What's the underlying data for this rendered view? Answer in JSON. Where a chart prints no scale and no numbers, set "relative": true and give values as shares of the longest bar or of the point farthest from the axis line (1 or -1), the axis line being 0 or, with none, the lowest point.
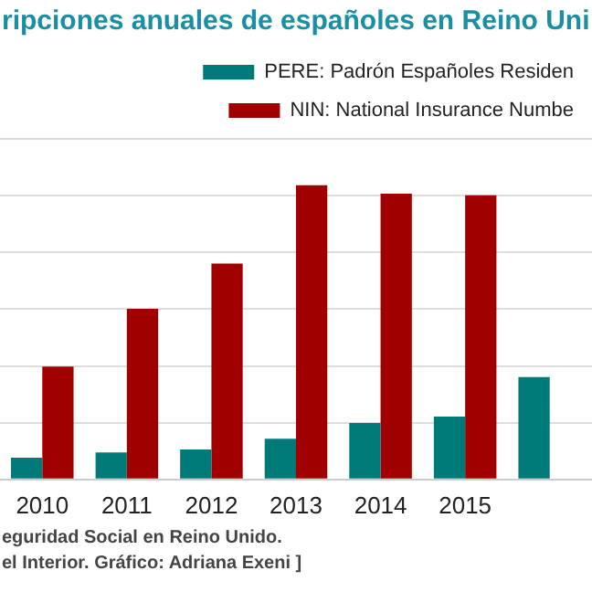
{
  "chart_data": {
    "type": "bar",
    "title": "ripciones anuales de españoles en Reino Uni",
    "categories": [
      "2010",
      "2011",
      "2012",
      "2013",
      "2014",
      "2015",
      null
    ],
    "relative": true,
    "grid": "y",
    "legend": "top right",
    "series": [
      {
        "name": "PERE: Padrón Españoles Residen",
        "color": "#007a78",
        "values": [
          0.074,
          0.092,
          0.102,
          0.138,
          0.192,
          0.214,
          0.348
        ]
      },
      {
        "name": "NIN: National Insurance Numbe",
        "color": "#a00000",
        "values": [
          0.384,
          0.58,
          0.734,
          1,
          0.972,
          0.966,
          null
        ]
      }
    ],
    "annotations": [
      "eguridad Social en Reino Unido.",
      "el Interior. Gráfico: Adriana Exeni ]"
    ]
  }
}
